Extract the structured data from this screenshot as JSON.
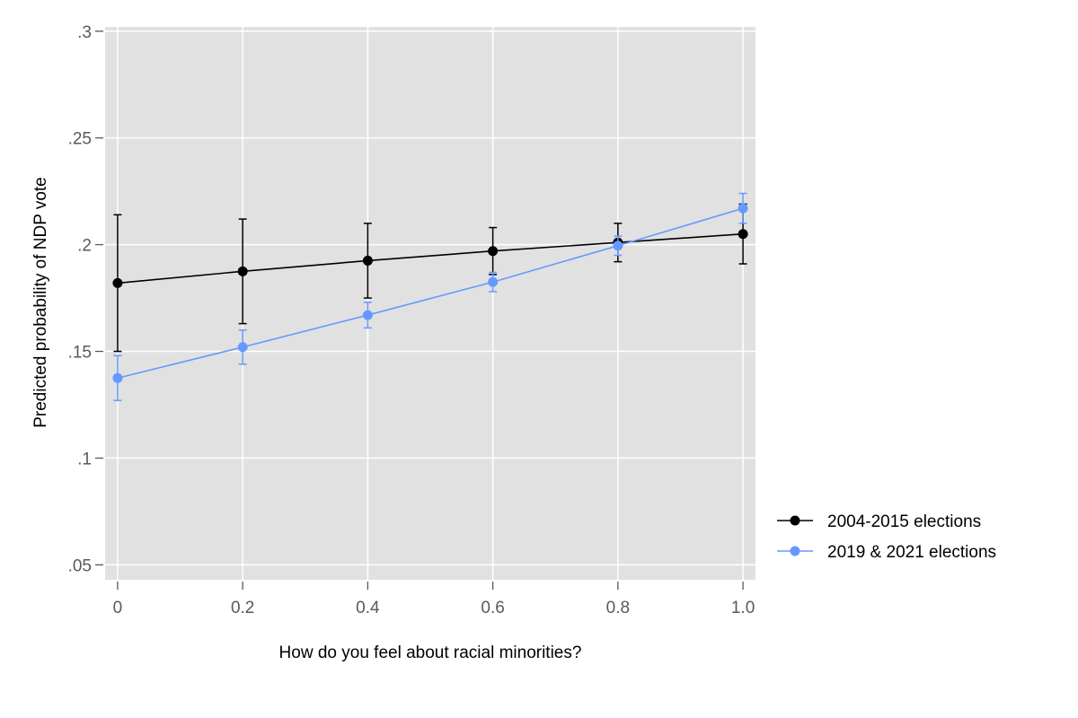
{
  "chart_data": {
    "type": "line",
    "xlabel": "How do you feel about racial minorities?",
    "ylabel": "Predicted probability of NDP vote",
    "x": [
      0,
      0.2,
      0.4,
      0.6,
      0.8,
      1.0
    ],
    "x_tick_values": [
      0,
      0.2,
      0.4,
      0.6,
      0.8,
      1.0
    ],
    "x_tick_labels": [
      "0",
      "0.2",
      "0.4",
      "0.6",
      "0.8",
      "1.0"
    ],
    "y_tick_values": [
      0.05,
      0.1,
      0.15,
      0.2,
      0.25,
      0.3
    ],
    "y_tick_labels": [
      ".05",
      ".1",
      ".15",
      ".2",
      ".25",
      ".3"
    ],
    "xlim": [
      -0.02,
      1.02
    ],
    "ylim": [
      0.043,
      0.302
    ],
    "grid": true,
    "legend_position": "right",
    "plot_background": "#e1e1e1",
    "series": [
      {
        "name": "2004-2015 elections",
        "color": "#000000",
        "values": [
          0.182,
          0.1875,
          0.1925,
          0.197,
          0.201,
          0.205
        ],
        "ci_low": [
          0.15,
          0.163,
          0.175,
          0.186,
          0.192,
          0.191
        ],
        "ci_high": [
          0.214,
          0.212,
          0.21,
          0.208,
          0.21,
          0.219
        ]
      },
      {
        "name": "2019 & 2021 elections",
        "color": "#6699ff",
        "values": [
          0.1375,
          0.152,
          0.167,
          0.1825,
          0.1995,
          0.217
        ],
        "ci_low": [
          0.127,
          0.144,
          0.161,
          0.178,
          0.195,
          0.21
        ],
        "ci_high": [
          0.148,
          0.16,
          0.173,
          0.187,
          0.204,
          0.224
        ]
      }
    ]
  }
}
